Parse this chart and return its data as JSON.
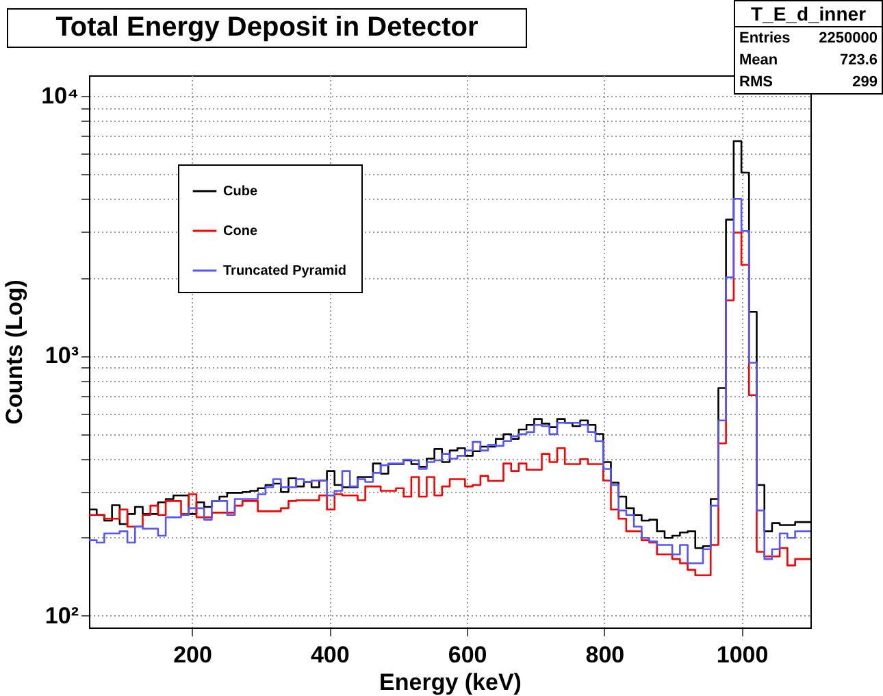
{
  "chart_data": {
    "type": "histogram",
    "title": "Total Energy Deposit in Detector",
    "xlabel": "Energy (keV)",
    "ylabel": "Counts (Log)",
    "annotations": [
      "T_E_d_inner",
      "Entries",
      "2250000",
      "Mean",
      "723.6",
      "RMS",
      "299"
    ],
    "bins": [
      50,
      61.2,
      72.3,
      83.5,
      94.7,
      105.9,
      117.0,
      128.2,
      139.4,
      150.5,
      161.7,
      172.9,
      184.0,
      195.2,
      206.4,
      217.6,
      228.7,
      239.9,
      251.1,
      262.2,
      273.4,
      284.6,
      295.7,
      306.9,
      318.1,
      329.3,
      340.4,
      351.6,
      362.8,
      373.9,
      385.1,
      396.3,
      407.4,
      418.6,
      429.8,
      441.0,
      452.1,
      463.3,
      474.5,
      485.6,
      496.8,
      508.0,
      519.1,
      530.3,
      541.5,
      552.7,
      563.8,
      575.0,
      586.2,
      597.3,
      608.5,
      619.7,
      630.9,
      642.0,
      653.2,
      664.4,
      675.5,
      686.7,
      697.9,
      709.0,
      720.2,
      731.4,
      742.6,
      753.7,
      764.9,
      776.1,
      787.2,
      798.4,
      809.6,
      820.7,
      831.9,
      843.1,
      854.3,
      865.4,
      876.6,
      887.8,
      898.9,
      910.1,
      921.3,
      932.4,
      943.6,
      954.8,
      966.0,
      977.1,
      988.3,
      999.5,
      1010.6,
      1021.8,
      1033.0,
      1044.1,
      1055.3,
      1066.5,
      1077.7,
      1088.8,
      1100
    ],
    "series": [
      {
        "name": "Cube",
        "color": "#000000",
        "values": [
          256,
          244,
          232,
          266,
          225,
          246,
          262,
          246,
          246,
          273,
          281,
          290,
          290,
          246,
          273,
          262,
          276,
          287,
          297,
          297,
          299,
          302,
          309,
          318,
          322,
          299,
          338,
          314,
          327,
          312,
          331,
          360,
          318,
          312,
          312,
          341,
          341,
          385,
          352,
          383,
          383,
          396,
          383,
          374,
          402,
          438,
          390,
          432,
          441,
          412,
          429,
          447,
          447,
          479,
          499,
          479,
          520,
          542,
          571,
          548,
          531,
          571,
          552,
          536,
          564,
          542,
          500,
          390,
          325,
          287,
          259,
          244,
          232,
          234,
          211,
          199,
          203,
          209,
          211,
          182,
          185,
          281,
          751,
          3341,
          6698,
          5070,
          1475,
          318,
          211,
          227,
          223,
          223,
          229,
          229
        ]
      },
      {
        "name": "Cone",
        "color": "#ff0000",
        "values": [
          244,
          244,
          236,
          236,
          256,
          220,
          220,
          244,
          265,
          244,
          276,
          276,
          246,
          293,
          239,
          239,
          249,
          249,
          249,
          265,
          276,
          276,
          252,
          252,
          252,
          259,
          276,
          278,
          278,
          278,
          290,
          256,
          293,
          290,
          290,
          278,
          314,
          314,
          302,
          302,
          309,
          287,
          341,
          287,
          341,
          290,
          314,
          335,
          335,
          314,
          318,
          345,
          330,
          330,
          385,
          360,
          385,
          364,
          364,
          419,
          390,
          441,
          383,
          383,
          400,
          383,
          383,
          331,
          256,
          236,
          211,
          211,
          195,
          191,
          172,
          172,
          165,
          159,
          150,
          143,
          143,
          187,
          460,
          1633,
          2980,
          2239,
          706,
          176,
          169,
          169,
          182,
          156,
          165,
          165
        ]
      },
      {
        "name": "Truncated Pyramid",
        "color": "#5555ff",
        "values": [
          195,
          191,
          207,
          207,
          211,
          191,
          220,
          216,
          216,
          203,
          239,
          239,
          244,
          259,
          259,
          234,
          276,
          276,
          244,
          281,
          281,
          281,
          293,
          312,
          335,
          312,
          312,
          335,
          327,
          331,
          331,
          290,
          302,
          360,
          314,
          335,
          327,
          354,
          379,
          385,
          385,
          398,
          396,
          367,
          390,
          396,
          419,
          402,
          412,
          432,
          466,
          432,
          454,
          450,
          470,
          490,
          499,
          508,
          542,
          536,
          499,
          552,
          552,
          552,
          542,
          509,
          469,
          367,
          318,
          254,
          244,
          220,
          199,
          193,
          187,
          187,
          172,
          187,
          159,
          159,
          180,
          265,
          564,
          2004,
          4018,
          3020,
          940,
          254,
          165,
          180,
          207,
          199,
          211,
          211
        ]
      }
    ],
    "xlim": [
      50,
      1100
    ],
    "xticks": [
      200,
      400,
      600,
      800,
      1000
    ],
    "log": true,
    "ylim": [
      90,
      12000
    ],
    "yticks": [
      {
        "value": 100,
        "label": "10²"
      },
      {
        "value": 200,
        "label": null
      },
      {
        "value": 300,
        "label": null
      },
      {
        "value": 400,
        "label": null
      },
      {
        "value": 500,
        "label": null
      },
      {
        "value": 600,
        "label": null
      },
      {
        "value": 700,
        "label": null
      },
      {
        "value": 800,
        "label": null
      },
      {
        "value": 900,
        "label": null
      },
      {
        "value": 1000,
        "label": "10³"
      },
      {
        "value": 2000,
        "label": null
      },
      {
        "value": 3000,
        "label": null
      },
      {
        "value": 4000,
        "label": null
      },
      {
        "value": 5000,
        "label": null
      },
      {
        "value": 6000,
        "label": null
      },
      {
        "value": 7000,
        "label": null
      },
      {
        "value": 8000,
        "label": null
      },
      {
        "value": 9000,
        "label": null
      },
      {
        "value": 10000,
        "label": "10⁴"
      }
    ],
    "grid": true,
    "legend": "top left"
  }
}
